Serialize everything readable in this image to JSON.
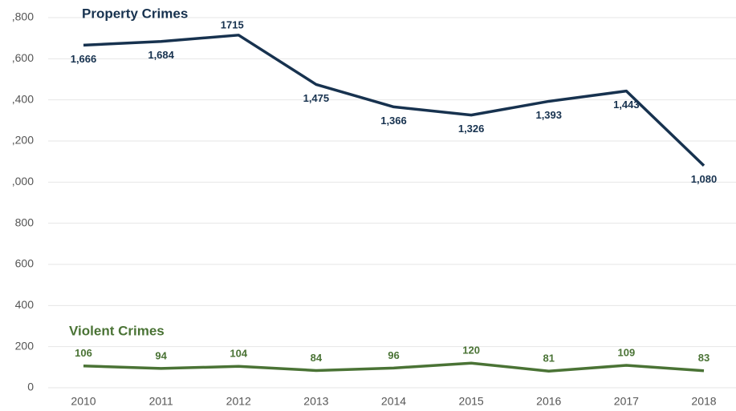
{
  "chart_data": {
    "type": "line",
    "categories": [
      "2010",
      "2011",
      "2012",
      "2013",
      "2014",
      "2015",
      "2016",
      "2017",
      "2018"
    ],
    "series": [
      {
        "name": "Property Crimes",
        "color": "#17324f",
        "values": [
          1666,
          1684,
          1715,
          1475,
          1366,
          1326,
          1393,
          1443,
          1080
        ],
        "value_labels": [
          "1,666",
          "1,684",
          "1715",
          "1,475",
          "1,366",
          "1,326",
          "1,393",
          "1,443",
          "1,080"
        ]
      },
      {
        "name": "Violent Crimes",
        "color": "#4a7335",
        "values": [
          106,
          94,
          104,
          84,
          96,
          120,
          81,
          109,
          83
        ]
      }
    ],
    "ylim": [
      0,
      1800
    ],
    "yticks": [
      0,
      200,
      400,
      600,
      800,
      {
        "value": 1000,
        "label": ",000"
      },
      {
        "value": 1200,
        "label": ",200"
      },
      {
        "value": 1400,
        "label": ",400"
      },
      {
        "value": 1600,
        "label": ",600"
      },
      {
        "value": 1800,
        "label": ",800"
      }
    ],
    "grid": true
  }
}
